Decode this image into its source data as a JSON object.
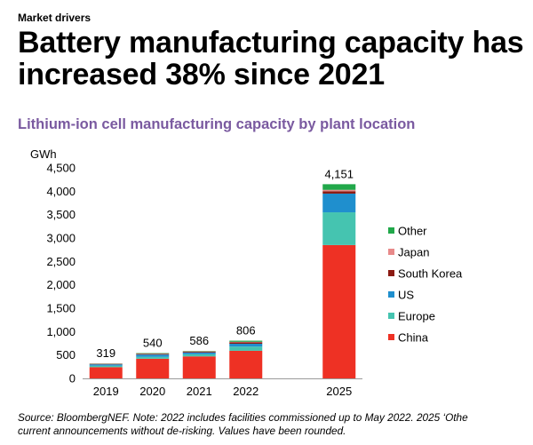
{
  "header": {
    "kicker": "Market drivers",
    "headline": "Battery manufacturing capacity has increased 38% since 2021"
  },
  "chart_data": {
    "type": "bar",
    "stacked": true,
    "title": "Lithium-ion cell manufacturing capacity by plant location",
    "ylabel": "GWh",
    "xlabel": "",
    "ylim": [
      0,
      4500
    ],
    "yticks": [
      0,
      500,
      1000,
      1500,
      2000,
      2500,
      3000,
      3500,
      4000,
      4500
    ],
    "ytick_labels": [
      "0",
      "500",
      "1,000",
      "1,500",
      "2,000",
      "2,500",
      "3,000",
      "3,500",
      "4,000",
      "4,500"
    ],
    "categories": [
      "2019",
      "2020",
      "2021",
      "2022",
      "",
      "2025"
    ],
    "series": [
      {
        "name": "China",
        "color": "#ee3124",
        "values": [
          240,
          420,
          470,
          590,
          null,
          2850
        ]
      },
      {
        "name": "Europe",
        "color": "#45c4b0",
        "values": [
          30,
          40,
          45,
          90,
          null,
          700
        ]
      },
      {
        "name": "US",
        "color": "#1f8fce",
        "values": [
          30,
          50,
          40,
          60,
          null,
          400
        ]
      },
      {
        "name": "South Korea",
        "color": "#8b1a12",
        "values": [
          10,
          15,
          15,
          30,
          null,
          50
        ]
      },
      {
        "name": "Japan",
        "color": "#e88a8a",
        "values": [
          5,
          5,
          8,
          12,
          null,
          30
        ]
      },
      {
        "name": "Other",
        "color": "#21a84a",
        "values": [
          4,
          10,
          8,
          24,
          null,
          121
        ]
      }
    ],
    "totals": [
      "319",
      "540",
      "586",
      "806",
      null,
      "4,151"
    ],
    "legend_order": [
      "Other",
      "Japan",
      "South Korea",
      "US",
      "Europe",
      "China"
    ],
    "legend_position": "right"
  },
  "source": {
    "line1": "Source: BloombergNEF. Note: 2022 includes facilities commissioned up to May 2022. 2025 ‘Othe",
    "line2": "current announcements without de-risking. Values have been rounded."
  }
}
